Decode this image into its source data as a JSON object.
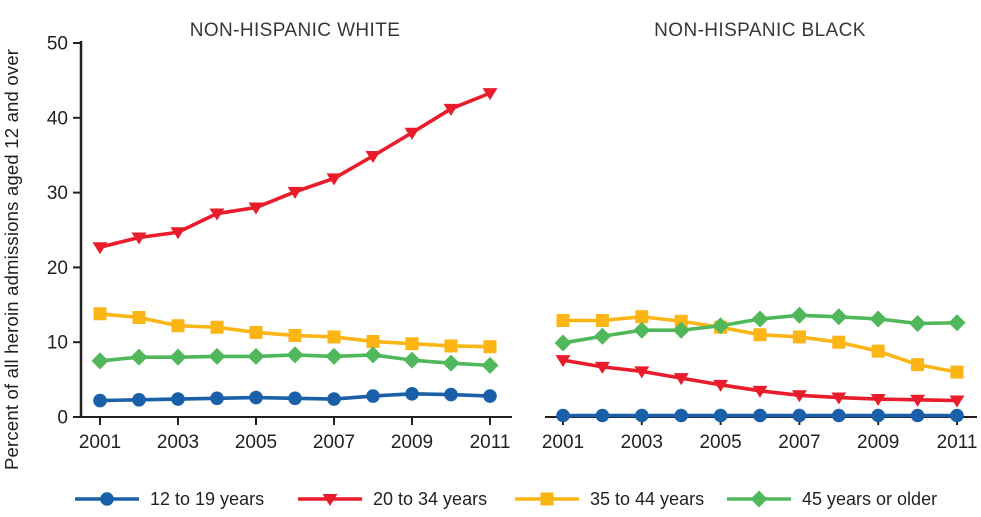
{
  "figure": {
    "y_axis_label": "Percent of all heroin admissions aged 12 and over"
  },
  "legend": {
    "position": "bottom",
    "items": [
      {
        "label": "12 to 19 years",
        "marker": "circle",
        "color": "#1a60a9"
      },
      {
        "label": "20 to 34 years",
        "marker": "triangle-down",
        "color": "#e81c2a"
      },
      {
        "label": "35 to 44 years",
        "marker": "square",
        "color": "#fbb515"
      },
      {
        "label": "45 years or older",
        "marker": "diamond",
        "color": "#50b85a"
      }
    ]
  },
  "chart_data": [
    {
      "type": "line",
      "title": "NON-HISPANIC WHITE",
      "x": [
        2001,
        2002,
        2003,
        2004,
        2005,
        2006,
        2007,
        2008,
        2009,
        2010,
        2011
      ],
      "xticks": [
        2001,
        2003,
        2005,
        2007,
        2009,
        2011
      ],
      "ylim": [
        0,
        50
      ],
      "yticks": [
        0,
        10,
        20,
        30,
        40,
        50
      ],
      "grid": false,
      "series": [
        {
          "name": "12 to 19 years",
          "marker": "circle",
          "color": "#1a60a9",
          "values": [
            2.2,
            2.3,
            2.4,
            2.5,
            2.6,
            2.5,
            2.4,
            2.8,
            3.1,
            3.0,
            2.8
          ]
        },
        {
          "name": "20 to 34 years",
          "marker": "triangle-down",
          "color": "#e81c2a",
          "values": [
            22.7,
            24.0,
            24.7,
            27.2,
            28.0,
            30.1,
            31.9,
            34.9,
            38.0,
            41.2,
            43.3
          ]
        },
        {
          "name": "35 to 44 years",
          "marker": "square",
          "color": "#fbb515",
          "values": [
            13.8,
            13.3,
            12.2,
            12.0,
            11.3,
            10.9,
            10.7,
            10.1,
            9.8,
            9.5,
            9.4
          ]
        },
        {
          "name": "45 years or older",
          "marker": "diamond",
          "color": "#50b85a",
          "values": [
            7.5,
            8.0,
            8.0,
            8.1,
            8.1,
            8.3,
            8.1,
            8.3,
            7.6,
            7.2,
            6.9
          ]
        }
      ]
    },
    {
      "type": "line",
      "title": "NON-HISPANIC BLACK",
      "x": [
        2001,
        2002,
        2003,
        2004,
        2005,
        2006,
        2007,
        2008,
        2009,
        2010,
        2011
      ],
      "xticks": [
        2001,
        2003,
        2005,
        2007,
        2009,
        2011
      ],
      "ylim": [
        0,
        50
      ],
      "yticks": [
        0,
        10,
        20,
        30,
        40,
        50
      ],
      "grid": false,
      "series": [
        {
          "name": "12 to 19 years",
          "marker": "circle",
          "color": "#1a60a9",
          "values": [
            0.2,
            0.2,
            0.2,
            0.2,
            0.2,
            0.2,
            0.2,
            0.2,
            0.2,
            0.2,
            0.2
          ]
        },
        {
          "name": "20 to 34 years",
          "marker": "triangle-down",
          "color": "#e81c2a",
          "values": [
            7.6,
            6.7,
            6.1,
            5.2,
            4.3,
            3.5,
            2.9,
            2.6,
            2.4,
            2.3,
            2.2
          ]
        },
        {
          "name": "35 to 44 years",
          "marker": "square",
          "color": "#fbb515",
          "values": [
            12.9,
            12.9,
            13.4,
            12.8,
            12.0,
            11.0,
            10.7,
            10.0,
            8.8,
            7.0,
            6.0
          ]
        },
        {
          "name": "45 years or older",
          "marker": "diamond",
          "color": "#50b85a",
          "values": [
            9.9,
            10.8,
            11.6,
            11.6,
            12.2,
            13.1,
            13.6,
            13.4,
            13.1,
            12.5,
            12.6
          ]
        }
      ]
    }
  ]
}
